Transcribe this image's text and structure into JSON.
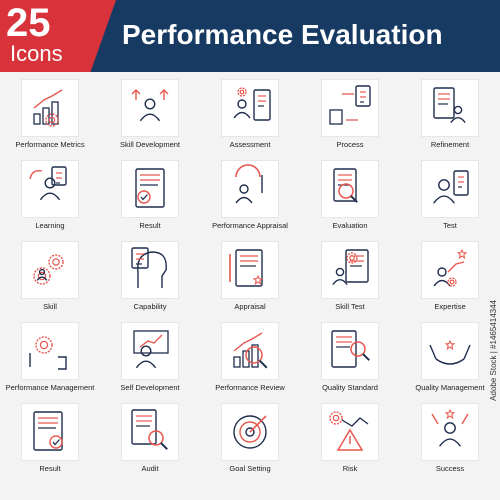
{
  "header": {
    "count": "25",
    "count_label": "Icons",
    "title": "Performance Evaluation"
  },
  "colors": {
    "navy": "#173a63",
    "red": "#d8323a",
    "stroke_dark": "#1f2e4d",
    "stroke_accent": "#e8574f"
  },
  "icons": [
    {
      "label": "Performance Metrics",
      "icon": "performance-metrics-icon"
    },
    {
      "label": "Skill Development",
      "icon": "skill-development-icon"
    },
    {
      "label": "Assessment",
      "icon": "assessment-icon"
    },
    {
      "label": "Process",
      "icon": "process-icon"
    },
    {
      "label": "Refinement",
      "icon": "refinement-icon"
    },
    {
      "label": "Learning",
      "icon": "learning-icon"
    },
    {
      "label": "Result",
      "icon": "result-icon"
    },
    {
      "label": "Performance Appraisal",
      "icon": "performance-appraisal-icon"
    },
    {
      "label": "Evaluation",
      "icon": "evaluation-icon"
    },
    {
      "label": "Test",
      "icon": "test-icon"
    },
    {
      "label": "Skill",
      "icon": "skill-icon"
    },
    {
      "label": "Capability",
      "icon": "capability-icon"
    },
    {
      "label": "Appraisal",
      "icon": "appraisal-icon"
    },
    {
      "label": "Skill Test",
      "icon": "skill-test-icon"
    },
    {
      "label": "Expertise",
      "icon": "expertise-icon"
    },
    {
      "label": "Performance Management",
      "icon": "performance-management-icon"
    },
    {
      "label": "Self Development",
      "icon": "self-development-icon"
    },
    {
      "label": "Performance Review",
      "icon": "performance-review-icon"
    },
    {
      "label": "Quality Standard",
      "icon": "quality-standard-icon"
    },
    {
      "label": "Quality Management",
      "icon": "quality-management-icon"
    },
    {
      "label": "Result",
      "icon": "result-clipboard-icon"
    },
    {
      "label": "Audit",
      "icon": "audit-icon"
    },
    {
      "label": "Goal Setting",
      "icon": "goal-setting-icon"
    },
    {
      "label": "Risk",
      "icon": "risk-icon"
    },
    {
      "label": "Success",
      "icon": "success-icon"
    }
  ],
  "watermark": "Adobe Stock | #1465414344"
}
